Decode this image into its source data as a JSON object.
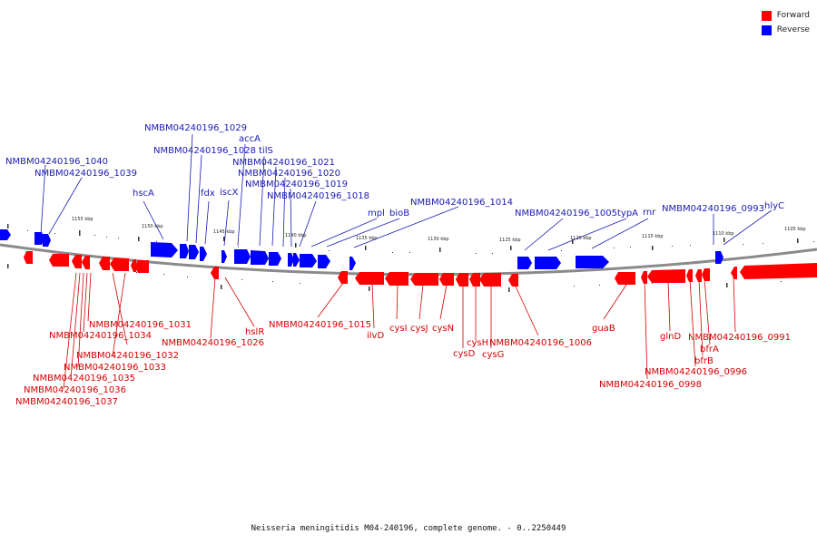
{
  "legend": {
    "forward": {
      "label": "Forward",
      "color": "#ff0000"
    },
    "reverse": {
      "label": "Reverse",
      "color": "#0000ff"
    }
  },
  "caption": "Neisseria meningitidis M04-240196, complete genome. - 0..2250449",
  "scale_labels": [
    "1155 kbp",
    "1150 kbp",
    "1145 kbp",
    "1140 kbp",
    "1135 kbp",
    "1130 kbp",
    "1125 kbp",
    "1120 kbp",
    "1115 kbp",
    "1110 kbp",
    "1105 kbp"
  ],
  "reverse_genes": [
    "NMBM04240196_1040",
    "NMBM04240196_1039",
    "hscA",
    "NMBM04240196_1029",
    "NMBM04240196_1028",
    "fdx",
    "iscX",
    "accA",
    "tilS",
    "NMBM04240196_1021",
    "NMBM04240196_1020",
    "NMBM04240196_1019",
    "NMBM04240196_1018",
    "mpl",
    "bioB",
    "NMBM04240196_1014",
    "NMBM04240196_1005",
    "typA",
    "rnr",
    "NMBM04240196_0993",
    "hlyC"
  ],
  "forward_genes": [
    "NMBM04240196_1031",
    "NMBM04240196_1034",
    "NMBM04240196_1032",
    "NMBM04240196_1033",
    "NMBM04240196_1035",
    "NMBM04240196_1036",
    "NMBM04240196_1037",
    "hslR",
    "NMBM04240196_1026",
    "NMBM04240196_1015",
    "ilvD",
    "cysI",
    "cysJ",
    "cysN",
    "cysH",
    "cysD",
    "cysG",
    "NMBM04240196_1006",
    "guaB",
    "glnD",
    "NMBM04240196_0991",
    "bfrA",
    "bfrB",
    "NMBM04240196_0996",
    "NMBM04240196_0998"
  ]
}
